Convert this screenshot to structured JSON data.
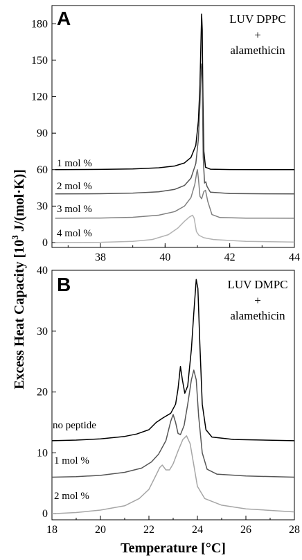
{
  "figure": {
    "ylabel": "Excess Heat Capacity [10",
    "ylabel_sup": "3",
    "ylabel_tail": " J/(mol·K)]",
    "xlabel": "Temperature [°C]"
  },
  "chart_data": [
    {
      "type": "line",
      "panel_label": "A",
      "annotation": [
        "LUV DPPC",
        "+",
        "alamethicin"
      ],
      "xlim": [
        36.5,
        44
      ],
      "ylim": [
        -4,
        195
      ],
      "xticks": [
        38,
        40,
        42,
        44
      ],
      "yticks": [
        0,
        30,
        60,
        90,
        120,
        150,
        180
      ],
      "series": [
        {
          "name": "1 mol %",
          "color": "#000000",
          "points": [
            [
              36.6,
              60.0
            ],
            [
              38.0,
              60.2
            ],
            [
              39.0,
              60.6
            ],
            [
              39.8,
              61.5
            ],
            [
              40.3,
              63.0
            ],
            [
              40.6,
              65.5
            ],
            [
              40.8,
              70.0
            ],
            [
              40.95,
              80.0
            ],
            [
              41.03,
              100.0
            ],
            [
              41.08,
              130.0
            ],
            [
              41.11,
              165.0
            ],
            [
              41.13,
              188.0
            ],
            [
              41.15,
              175.0
            ],
            [
              41.17,
              120.0
            ],
            [
              41.2,
              75.0
            ],
            [
              41.25,
              62.0
            ],
            [
              41.4,
              60.4
            ],
            [
              42.0,
              60.1
            ],
            [
              44.0,
              60.0
            ]
          ]
        },
        {
          "name": "2 mol %",
          "color": "#555555",
          "points": [
            [
              36.6,
              40.0
            ],
            [
              38.0,
              40.2
            ],
            [
              39.0,
              40.7
            ],
            [
              39.8,
              41.8
            ],
            [
              40.3,
              43.8
            ],
            [
              40.6,
              47.0
            ],
            [
              40.8,
              53.0
            ],
            [
              40.95,
              65.0
            ],
            [
              41.03,
              85.0
            ],
            [
              41.08,
              115.0
            ],
            [
              41.11,
              140.0
            ],
            [
              41.13,
              147.0
            ],
            [
              41.15,
              130.0
            ],
            [
              41.18,
              70.0
            ],
            [
              41.22,
              49.0
            ],
            [
              41.26,
              50.0
            ],
            [
              41.3,
              46.0
            ],
            [
              41.4,
              41.5
            ],
            [
              42.0,
              40.3
            ],
            [
              44.0,
              40.0
            ]
          ]
        },
        {
          "name": "3 mol %",
          "color": "#808080",
          "points": [
            [
              36.6,
              20.0
            ],
            [
              38.0,
              20.2
            ],
            [
              39.0,
              20.8
            ],
            [
              39.8,
              22.5
            ],
            [
              40.3,
              25.5
            ],
            [
              40.6,
              30.0
            ],
            [
              40.8,
              37.0
            ],
            [
              40.92,
              48.0
            ],
            [
              40.98,
              58.0
            ],
            [
              41.0,
              60.0
            ],
            [
              41.03,
              53.0
            ],
            [
              41.08,
              38.0
            ],
            [
              41.13,
              36.0
            ],
            [
              41.2,
              42.0
            ],
            [
              41.25,
              43.0
            ],
            [
              41.32,
              34.0
            ],
            [
              41.45,
              23.0
            ],
            [
              41.7,
              20.6
            ],
            [
              42.5,
              20.1
            ],
            [
              44.0,
              20.0
            ]
          ]
        },
        {
          "name": "4 mol %",
          "color": "#b3b3b3",
          "points": [
            [
              36.6,
              0.0
            ],
            [
              38.0,
              0.2
            ],
            [
              39.0,
              1.0
            ],
            [
              39.6,
              2.5
            ],
            [
              40.1,
              6.5
            ],
            [
              40.4,
              12.0
            ],
            [
              40.6,
              17.5
            ],
            [
              40.75,
              21.0
            ],
            [
              40.85,
              22.5
            ],
            [
              40.9,
              20.0
            ],
            [
              40.97,
              9.0
            ],
            [
              41.05,
              6.0
            ],
            [
              41.2,
              4.0
            ],
            [
              41.5,
              2.5
            ],
            [
              42.5,
              1.0
            ],
            [
              44.0,
              0.4
            ]
          ]
        }
      ]
    },
    {
      "type": "line",
      "panel_label": "B",
      "annotation": [
        "LUV DMPC",
        "+",
        "alamethicin"
      ],
      "xlim": [
        18,
        28
      ],
      "ylim": [
        -1,
        40
      ],
      "xticks": [
        18,
        20,
        22,
        24,
        26,
        28
      ],
      "yticks": [
        0,
        10,
        20,
        30,
        40
      ],
      "series": [
        {
          "name": "no peptide",
          "color": "#000000",
          "points": [
            [
              18.0,
              12.0
            ],
            [
              19.0,
              12.1
            ],
            [
              20.0,
              12.3
            ],
            [
              21.0,
              12.7
            ],
            [
              21.5,
              13.1
            ],
            [
              22.0,
              13.8
            ],
            [
              22.3,
              15.0
            ],
            [
              22.6,
              15.8
            ],
            [
              22.9,
              16.5
            ],
            [
              23.1,
              18.0
            ],
            [
              23.2,
              20.5
            ],
            [
              23.3,
              24.2
            ],
            [
              23.38,
              22.0
            ],
            [
              23.48,
              19.8
            ],
            [
              23.6,
              21.0
            ],
            [
              23.75,
              27.0
            ],
            [
              23.85,
              33.0
            ],
            [
              23.95,
              38.5
            ],
            [
              24.02,
              37.0
            ],
            [
              24.1,
              28.0
            ],
            [
              24.2,
              18.0
            ],
            [
              24.35,
              13.8
            ],
            [
              24.6,
              12.6
            ],
            [
              25.5,
              12.2
            ],
            [
              28.0,
              12.0
            ]
          ]
        },
        {
          "name": "1 mol %",
          "color": "#555555",
          "points": [
            [
              18.0,
              6.0
            ],
            [
              19.0,
              6.1
            ],
            [
              20.0,
              6.3
            ],
            [
              21.0,
              6.8
            ],
            [
              21.7,
              7.5
            ],
            [
              22.1,
              8.5
            ],
            [
              22.4,
              9.8
            ],
            [
              22.7,
              12.0
            ],
            [
              22.9,
              15.2
            ],
            [
              23.0,
              16.3
            ],
            [
              23.1,
              15.0
            ],
            [
              23.2,
              13.2
            ],
            [
              23.3,
              13.0
            ],
            [
              23.45,
              14.5
            ],
            [
              23.6,
              18.0
            ],
            [
              23.75,
              22.0
            ],
            [
              23.85,
              23.6
            ],
            [
              23.95,
              22.0
            ],
            [
              24.05,
              16.0
            ],
            [
              24.2,
              10.0
            ],
            [
              24.4,
              7.3
            ],
            [
              24.8,
              6.5
            ],
            [
              26.0,
              6.2
            ],
            [
              28.0,
              6.0
            ]
          ]
        },
        {
          "name": "2 mol %",
          "color": "#a6a6a6",
          "points": [
            [
              18.0,
              0.0
            ],
            [
              19.0,
              0.2
            ],
            [
              20.0,
              0.6
            ],
            [
              21.0,
              1.3
            ],
            [
              21.6,
              2.5
            ],
            [
              22.0,
              4.0
            ],
            [
              22.25,
              6.0
            ],
            [
              22.45,
              7.6
            ],
            [
              22.55,
              8.0
            ],
            [
              22.7,
              7.2
            ],
            [
              22.85,
              7.2
            ],
            [
              23.0,
              8.2
            ],
            [
              23.2,
              10.3
            ],
            [
              23.4,
              12.2
            ],
            [
              23.55,
              12.8
            ],
            [
              23.7,
              11.5
            ],
            [
              23.85,
              8.0
            ],
            [
              24.0,
              4.5
            ],
            [
              24.3,
              2.5
            ],
            [
              25.0,
              1.4
            ],
            [
              26.0,
              0.8
            ],
            [
              28.0,
              0.3
            ]
          ]
        }
      ]
    }
  ]
}
